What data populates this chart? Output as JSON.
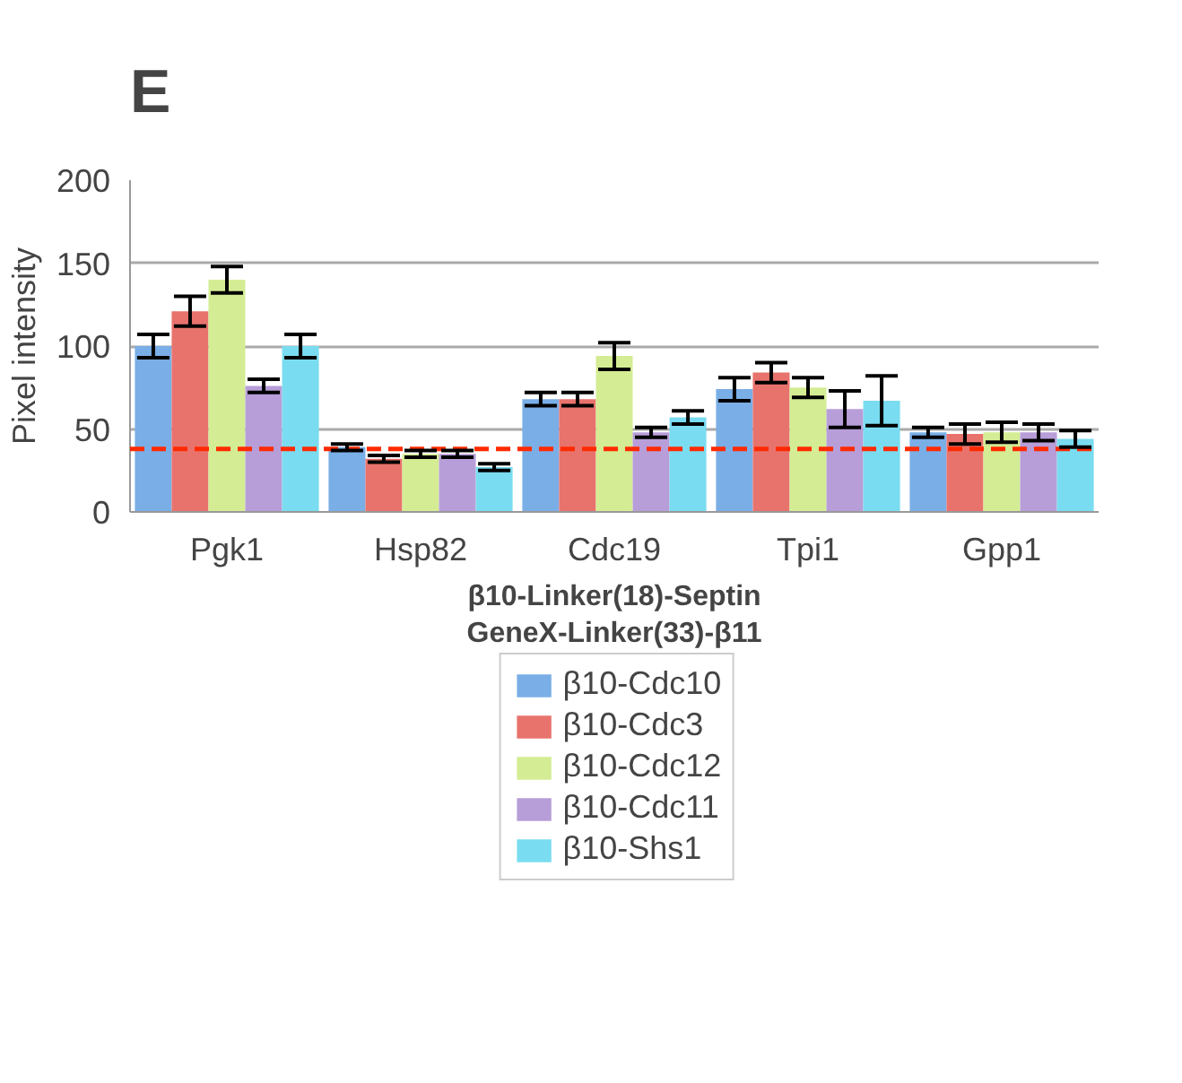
{
  "chart_data": {
    "type": "bar",
    "title": "E",
    "ylabel": "Pixel intensity",
    "xlabel": "β10-Linker(18)-Septin\nGeneX-Linker(33)-β11",
    "categories": [
      "Pgk1",
      "Hsp82",
      "Cdc19",
      "Tpi1",
      "Gpp1"
    ],
    "ylim": [
      0,
      200
    ],
    "yticks": [
      0,
      50,
      100,
      150,
      200
    ],
    "grid": "y",
    "legend": "bottom",
    "ref_lines": [
      {
        "axis": "y",
        "value": 38,
        "color": "#ff2a00",
        "line_style": "dashed"
      }
    ],
    "series": [
      {
        "name": "β10-Cdc10",
        "color": "#7aaee6",
        "values": [
          100,
          39,
          68,
          74,
          48
        ],
        "errors": [
          7,
          2,
          4,
          7,
          3
        ]
      },
      {
        "name": "β10-Cdc3",
        "color": "#e8736d",
        "values": [
          121,
          32,
          68,
          84,
          47
        ],
        "errors": [
          9,
          2,
          4,
          6,
          6
        ]
      },
      {
        "name": "β10-Cdc12",
        "color": "#d4ec94",
        "values": [
          140,
          35,
          94,
          75,
          48
        ],
        "errors": [
          8,
          2,
          8,
          6,
          6
        ]
      },
      {
        "name": "β10-Cdc11",
        "color": "#b79ed8",
        "values": [
          76,
          35,
          48,
          62,
          48
        ],
        "errors": [
          4,
          2,
          3,
          11,
          5
        ]
      },
      {
        "name": "β10-Shs1",
        "color": "#7adcf0",
        "values": [
          100,
          27,
          57,
          67,
          44
        ],
        "errors": [
          7,
          2,
          4,
          15,
          5
        ]
      }
    ]
  }
}
